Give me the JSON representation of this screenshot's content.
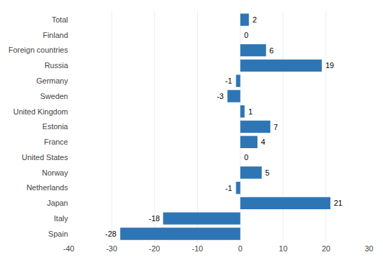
{
  "chart_data": {
    "type": "bar",
    "orientation": "horizontal",
    "categories": [
      "Spain",
      "Italy",
      "Japan",
      "Netherlands",
      "Norway",
      "United States",
      "France",
      "Estonia",
      "United Kingdom",
      "Sweden",
      "Germany",
      "Russia",
      "Foreign countries",
      "Finland",
      "Total"
    ],
    "values": [
      -28,
      -18,
      21,
      -1,
      5,
      0,
      4,
      7,
      1,
      -3,
      -1,
      19,
      6,
      0,
      2
    ],
    "color": "#2E75B6",
    "xlim": [
      -40,
      30
    ],
    "xticks": [
      -40,
      -30,
      -20,
      -10,
      0,
      10,
      20,
      30
    ],
    "grid": true,
    "data_labels": true
  }
}
